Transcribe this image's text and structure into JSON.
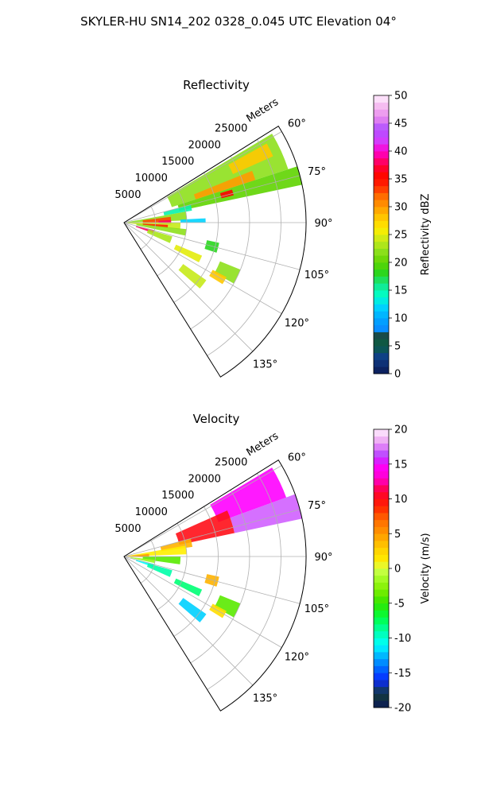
{
  "figure": {
    "suptitle": "SKYLER-HU  SN14_202  0328_0.045 UTC Elevation 04°"
  },
  "chart_data": [
    {
      "type": "heatmap",
      "projection": "polar-sector",
      "title": "Reflectivity",
      "range_label": "Meters",
      "range_ticks": [
        "5000",
        "10000",
        "15000",
        "20000",
        "25000"
      ],
      "range_tick_values": [
        5000,
        10000,
        15000,
        20000,
        25000
      ],
      "rlim": [
        0,
        29000
      ],
      "azimuth_ticks": [
        "60°",
        "75°",
        "90°",
        "105°",
        "120°",
        "135°"
      ],
      "azimuth_tick_values": [
        60,
        75,
        90,
        105,
        120,
        135
      ],
      "azimuth_range": [
        58,
        148
      ],
      "grid": true,
      "colorbar": {
        "label": "Reflectivity dBZ",
        "ticks": [
          "0",
          "5",
          "10",
          "15",
          "20",
          "25",
          "30",
          "35",
          "40",
          "45",
          "50"
        ],
        "range": [
          0,
          50
        ]
      },
      "echo_regions": [
        {
          "az": [
            59,
            72
          ],
          "r": [
            8000,
            27500
          ],
          "value": 22
        },
        {
          "az": [
            72,
            78
          ],
          "r": [
            9000,
            29000
          ],
          "value": 20
        },
        {
          "az": [
            61,
            66
          ],
          "r": [
            19000,
            26000
          ],
          "value": 28
        },
        {
          "az": [
            68,
            72
          ],
          "r": [
            12000,
            22000
          ],
          "value": 30
        },
        {
          "az": [
            73,
            76
          ],
          "r": [
            16000,
            18000
          ],
          "value": 36
        },
        {
          "az": [
            75,
            80
          ],
          "r": [
            6500,
            11000
          ],
          "value": 15
        },
        {
          "az": [
            80,
            88
          ],
          "r": [
            500,
            10000
          ],
          "value": 22
        },
        {
          "az": [
            83,
            90
          ],
          "r": [
            3000,
            7500
          ],
          "value": 33
        },
        {
          "az": [
            87,
            92
          ],
          "r": [
            5500,
            7500
          ],
          "value": 38
        },
        {
          "az": [
            90,
            97
          ],
          "r": [
            500,
            9000
          ],
          "value": 24
        },
        {
          "az": [
            93,
            97
          ],
          "r": [
            3000,
            7000
          ],
          "value": 34
        },
        {
          "az": [
            96,
            102
          ],
          "r": [
            2000,
            10000
          ],
          "value": 22
        },
        {
          "az": [
            102,
            108
          ],
          "r": [
            13500,
            15500
          ],
          "value": 18
        },
        {
          "az": [
            104,
            110
          ],
          "r": [
            2000,
            5000
          ],
          "value": 38
        },
        {
          "az": [
            106,
            114
          ],
          "r": [
            4000,
            8000
          ],
          "value": 23
        },
        {
          "az": [
            113,
            118
          ],
          "r": [
            9000,
            13500
          ],
          "value": 25
        },
        {
          "az": [
            112,
            119
          ],
          "r": [
            16500,
            20000
          ],
          "value": 22
        },
        {
          "az": [
            118,
            122
          ],
          "r": [
            16000,
            18500
          ],
          "value": 28
        },
        {
          "az": [
            125,
            131
          ],
          "r": [
            11500,
            16000
          ],
          "value": 24
        },
        {
          "az": [
            87,
            90
          ],
          "r": [
            9000,
            13000
          ],
          "value": 12
        }
      ]
    },
    {
      "type": "heatmap",
      "projection": "polar-sector",
      "title": "Velocity",
      "range_label": "Meters",
      "range_ticks": [
        "5000",
        "10000",
        "15000",
        "20000",
        "25000"
      ],
      "range_tick_values": [
        5000,
        10000,
        15000,
        20000,
        25000
      ],
      "rlim": [
        0,
        29000
      ],
      "azimuth_ticks": [
        "60°",
        "75°",
        "90°",
        "105°",
        "120°",
        "135°"
      ],
      "azimuth_tick_values": [
        60,
        75,
        90,
        105,
        120,
        135
      ],
      "azimuth_range": [
        58,
        148
      ],
      "grid": true,
      "colorbar": {
        "label": "Velocity (m/s)",
        "ticks": [
          "-20",
          "-15",
          "-10",
          "-5",
          "0",
          "5",
          "10",
          "15",
          "20"
        ],
        "range": [
          -20,
          20
        ]
      },
      "echo_regions": [
        {
          "az": [
            59,
            70
          ],
          "r": [
            16000,
            27500
          ],
          "value": 15
        },
        {
          "az": [
            66,
            78
          ],
          "r": [
            9000,
            18000
          ],
          "value": 10
        },
        {
          "az": [
            70,
            78
          ],
          "r": [
            18000,
            29000
          ],
          "value": 17
        },
        {
          "az": [
            75,
            82
          ],
          "r": [
            6000,
            11000
          ],
          "value": 4
        },
        {
          "az": [
            80,
            88
          ],
          "r": [
            500,
            10000
          ],
          "value": 1
        },
        {
          "az": [
            84,
            92
          ],
          "r": [
            500,
            4000
          ],
          "value": 5
        },
        {
          "az": [
            90,
            98
          ],
          "r": [
            3000,
            9000
          ],
          "value": -4
        },
        {
          "az": [
            96,
            102
          ],
          "r": [
            1000,
            5000
          ],
          "value": -2
        },
        {
          "az": [
            102,
            108
          ],
          "r": [
            13500,
            15500
          ],
          "value": 4
        },
        {
          "az": [
            104,
            110
          ],
          "r": [
            2000,
            5000
          ],
          "value": -11
        },
        {
          "az": [
            106,
            114
          ],
          "r": [
            4000,
            8000
          ],
          "value": -9
        },
        {
          "az": [
            113,
            118
          ],
          "r": [
            9000,
            13500
          ],
          "value": -8
        },
        {
          "az": [
            112,
            119
          ],
          "r": [
            16500,
            20000
          ],
          "value": -4
        },
        {
          "az": [
            118,
            122
          ],
          "r": [
            16000,
            18500
          ],
          "value": 2
        },
        {
          "az": [
            125,
            131
          ],
          "r": [
            11500,
            16000
          ],
          "value": -12
        }
      ]
    }
  ]
}
